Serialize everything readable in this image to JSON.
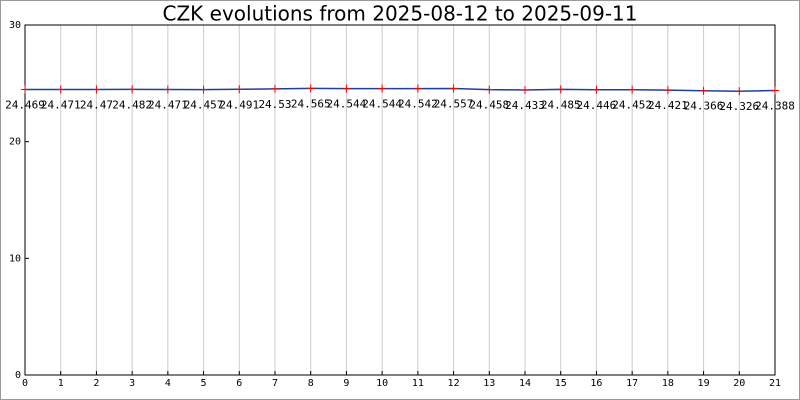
{
  "chart_data": {
    "type": "line",
    "title": "CZK evolutions from 2025-08-12 to 2025-09-11",
    "x": [
      0,
      1,
      2,
      3,
      4,
      5,
      6,
      7,
      8,
      9,
      10,
      11,
      12,
      13,
      14,
      15,
      16,
      17,
      18,
      19,
      20,
      21
    ],
    "series": [
      {
        "color": "#1f3fa0",
        "marker_color": "#ff0000",
        "values": [
          24.469,
          24.471,
          24.47,
          24.482,
          24.471,
          24.457,
          24.491,
          24.53,
          24.565,
          24.544,
          24.544,
          24.542,
          24.557,
          24.458,
          24.433,
          24.485,
          24.446,
          24.452,
          24.421,
          24.366,
          24.326,
          24.388
        ]
      }
    ],
    "xlim": [
      0,
      21
    ],
    "xticks": [
      0,
      1,
      2,
      3,
      4,
      5,
      6,
      7,
      8,
      9,
      10,
      11,
      12,
      13,
      14,
      15,
      16,
      17,
      18,
      19,
      20,
      21
    ],
    "ylim": [
      0,
      30
    ],
    "yticks": [
      0,
      10,
      20,
      30
    ],
    "grid": "x",
    "data_labels": true
  }
}
